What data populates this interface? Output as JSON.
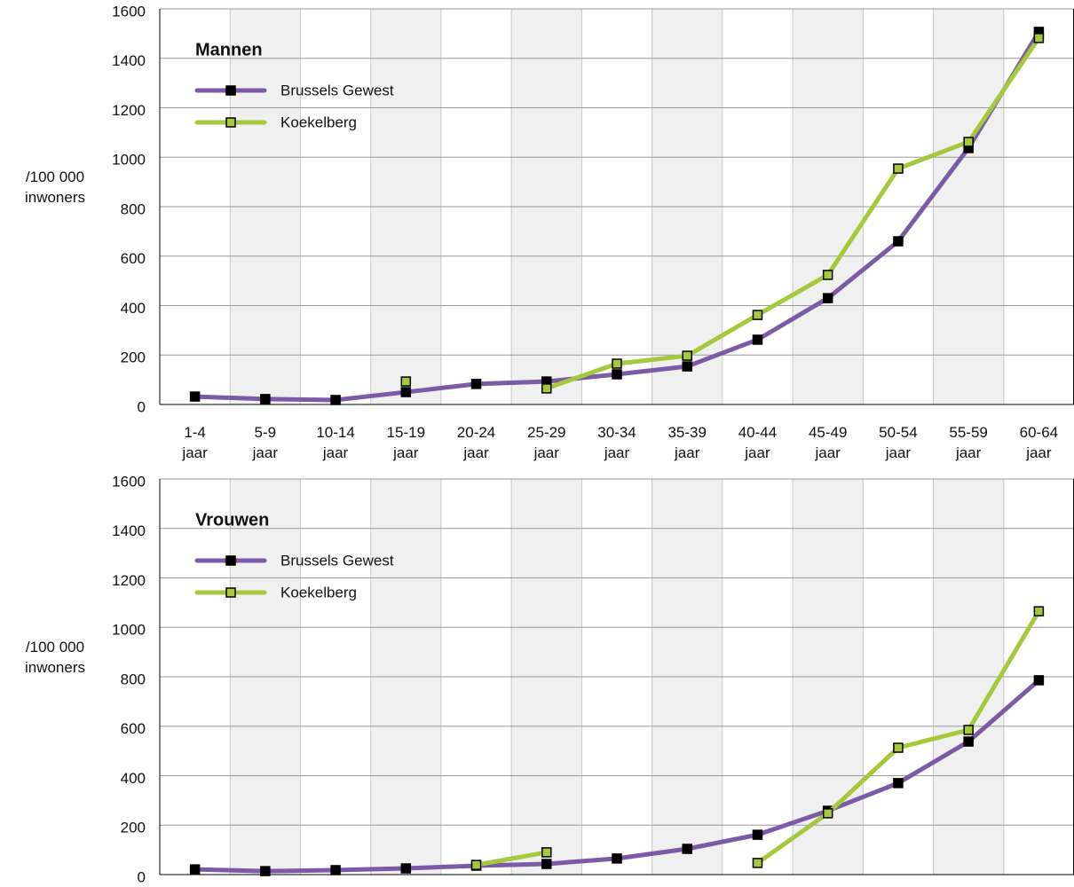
{
  "chart_data": [
    {
      "type": "line",
      "title": "Mannen",
      "y_label": "/100 000 inwoners",
      "categories": [
        "1-4 jaar",
        "5-9 jaar",
        "10-14 jaar",
        "15-19 jaar",
        "20-24 jaar",
        "25-29 jaar",
        "30-34 jaar",
        "35-39 jaar",
        "40-44 jaar",
        "45-49 jaar",
        "50-54 jaar",
        "55-59 jaar",
        "60-64 jaar"
      ],
      "series": [
        {
          "name": "Brussels Gewest",
          "color": "#7b5aa6",
          "marker_color": "#000000",
          "values": [
            32,
            22,
            18,
            50,
            83,
            93,
            122,
            154,
            262,
            430,
            660,
            1037,
            1507
          ]
        },
        {
          "name": "Koekelberg",
          "color": "#a5c83c",
          "marker_color": "#a5c83c",
          "values": [
            null,
            null,
            null,
            93,
            null,
            65,
            165,
            197,
            362,
            524,
            954,
            1062,
            1482
          ]
        }
      ],
      "ylim": [
        0,
        1600
      ],
      "yticks": [
        0,
        200,
        400,
        600,
        800,
        1000,
        1200,
        1400,
        1600
      ],
      "grid": true
    },
    {
      "type": "line",
      "title": "Vrouwen",
      "y_label": "/100 000 inwoners",
      "series": [
        {
          "name": "Brussels Gewest",
          "color": "#7b5aa6",
          "marker_color": "#000000",
          "values": [
            21,
            14,
            18,
            25,
            36,
            43,
            65,
            104,
            161,
            258,
            370,
            538,
            786
          ]
        },
        {
          "name": "Koekelberg",
          "color": "#a5c83c",
          "marker_color": "#a5c83c",
          "values": [
            null,
            null,
            null,
            null,
            39,
            90,
            null,
            null,
            47,
            248,
            513,
            585,
            1065
          ]
        }
      ],
      "ylim": [
        0,
        1600
      ],
      "yticks": [
        0,
        200,
        400,
        600,
        800,
        1000,
        1200,
        1400,
        1600
      ],
      "grid": true
    }
  ]
}
